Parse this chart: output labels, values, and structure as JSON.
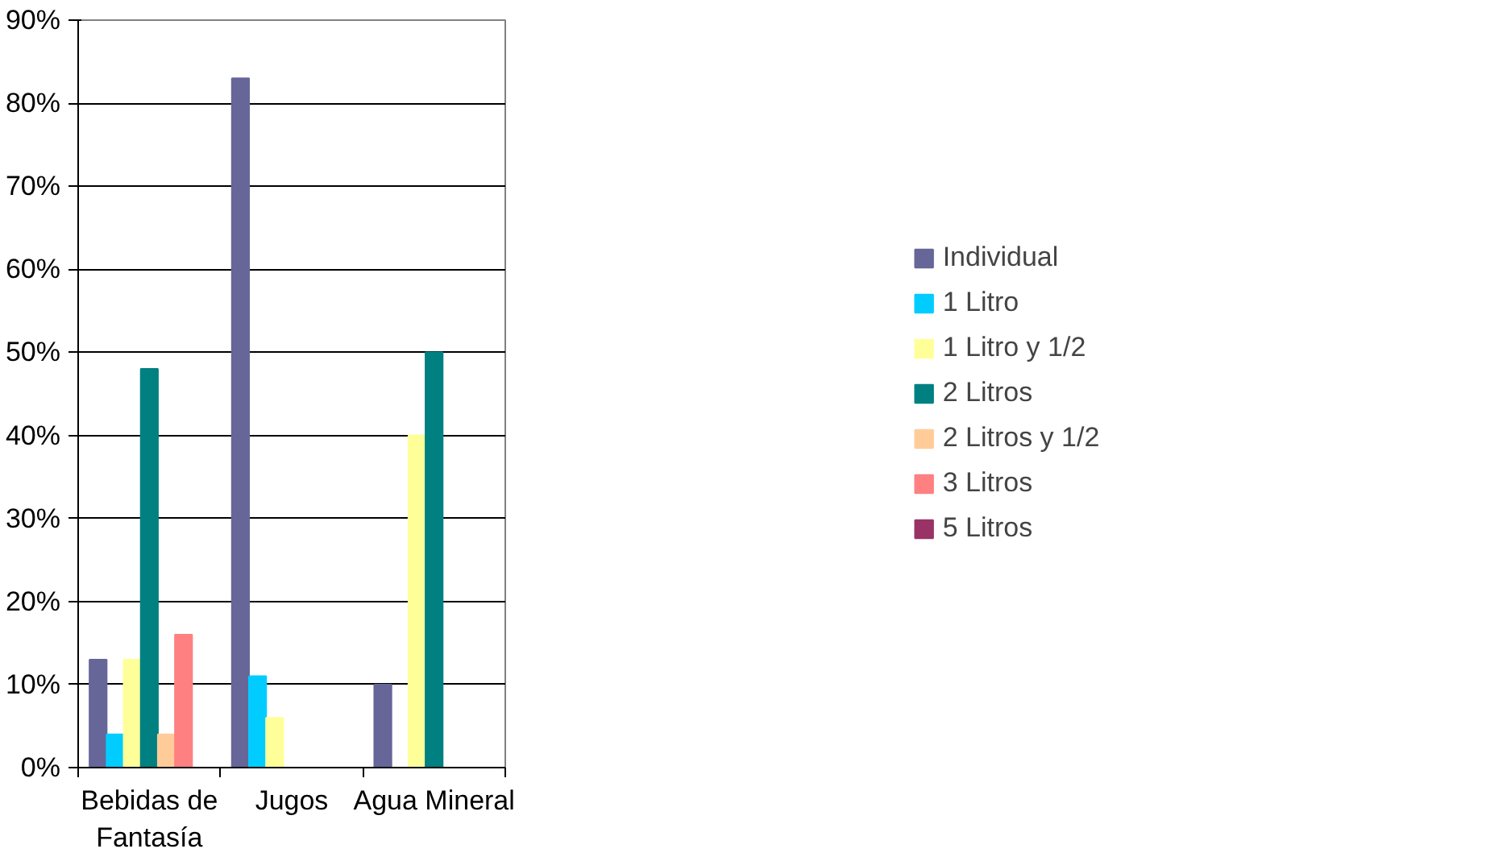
{
  "chart_data": {
    "type": "bar",
    "categories": [
      "Bebidas de Fantasía",
      "Jugos",
      "Agua Mineral"
    ],
    "series": [
      {
        "name": "Individual",
        "color": "#666699",
        "values": [
          13,
          83,
          10
        ]
      },
      {
        "name": "1 Litro",
        "color": "#00ccff",
        "values": [
          4,
          11,
          0
        ]
      },
      {
        "name": "1 Litro y 1/2",
        "color": "#ffff99",
        "values": [
          13,
          6,
          40
        ]
      },
      {
        "name": "2 Litros",
        "color": "#008080",
        "values": [
          48,
          0,
          50
        ]
      },
      {
        "name": "2 Litros y 1/2",
        "color": "#ffcc99",
        "values": [
          4,
          0,
          0
        ]
      },
      {
        "name": "3 Litros",
        "color": "#ff8080",
        "values": [
          16,
          0,
          0
        ]
      },
      {
        "name": "5 Litros",
        "color": "#993366",
        "values": [
          0,
          0,
          0
        ]
      }
    ],
    "ylim": [
      0,
      90
    ],
    "yticks": [
      {
        "value": 0,
        "label": "0%"
      },
      {
        "value": 10,
        "label": "10%"
      },
      {
        "value": 20,
        "label": "20%"
      },
      {
        "value": 30,
        "label": "30%"
      },
      {
        "value": 40,
        "label": "40%"
      },
      {
        "value": 50,
        "label": "50%"
      },
      {
        "value": 60,
        "label": "60%"
      },
      {
        "value": 70,
        "label": "70%"
      },
      {
        "value": 80,
        "label": "80%"
      },
      {
        "value": 90,
        "label": "90%"
      }
    ],
    "grid": "y",
    "legend": "right"
  }
}
